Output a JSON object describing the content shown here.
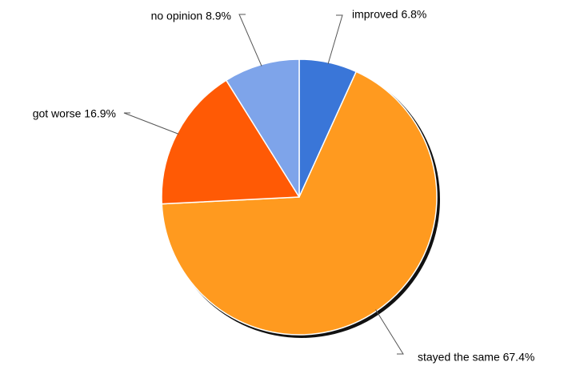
{
  "chart_data": {
    "type": "pie",
    "title": "",
    "slices": [
      {
        "label": "improved",
        "value": 6.8,
        "display": "6.8%",
        "color": "#3a76d8"
      },
      {
        "label": "stayed the same",
        "value": 67.4,
        "display": "67.4%",
        "color": "#ff9a1f"
      },
      {
        "label": "got worse",
        "value": 16.9,
        "display": "16.9%",
        "color": "#ff5a05"
      },
      {
        "label": "no opinion",
        "value": 8.9,
        "display": "8.9%",
        "color": "#7ea4ea"
      }
    ],
    "start_angle": "12 o'clock",
    "direction": "clockwise",
    "legend": "none",
    "label_style": "outside labels with leader lines"
  }
}
